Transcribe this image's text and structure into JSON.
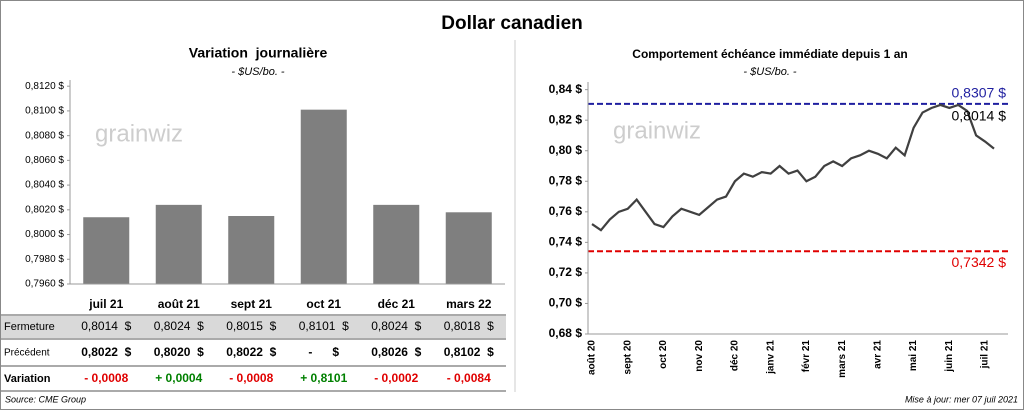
{
  "title": "Dollar canadien",
  "chart_data": [
    {
      "type": "bar",
      "title": "Variation  journalière",
      "subtitle": "- $US/bo. -",
      "watermark": "grainwiz",
      "categories": [
        "juil 21",
        "août 21",
        "sept 21",
        "oct 21",
        "déc 21",
        "mars 22"
      ],
      "values": [
        0.8014,
        0.8024,
        0.8015,
        0.8101,
        0.8024,
        0.8018
      ],
      "color": "#7f7f7f",
      "ylim": [
        0.796,
        0.8125
      ],
      "yticks": [
        {
          "value": 0.796,
          "label": "0,7960 $"
        },
        {
          "value": 0.798,
          "label": "0,7980 $"
        },
        {
          "value": 0.8,
          "label": "0,8000 $"
        },
        {
          "value": 0.802,
          "label": "0,8020 $"
        },
        {
          "value": 0.804,
          "label": "0,8040 $"
        },
        {
          "value": 0.806,
          "label": "0,8060 $"
        },
        {
          "value": 0.808,
          "label": "0,8080 $"
        },
        {
          "value": 0.81,
          "label": "0,8100 $"
        },
        {
          "value": 0.812,
          "label": "0,8120 $"
        }
      ]
    },
    {
      "type": "line",
      "title": "Comportement échéance immédiate depuis 1 an",
      "subtitle": "- $US/bo. -",
      "watermark": "grainwiz",
      "x": [
        "août 20",
        null,
        null,
        null,
        "sept 20",
        null,
        null,
        null,
        "oct 20",
        null,
        null,
        null,
        "nov 20",
        null,
        null,
        null,
        "déc 20",
        null,
        null,
        null,
        "janv 21",
        null,
        null,
        null,
        "févr 21",
        null,
        null,
        null,
        "mars 21",
        null,
        null,
        null,
        "avr 21",
        null,
        null,
        null,
        "mai 21",
        null,
        null,
        null,
        "juin 21",
        null,
        null,
        null,
        "juil 21",
        null
      ],
      "series": [
        {
          "name": "Dollar canadien",
          "color": "#404040",
          "values": [
            0.752,
            0.748,
            0.755,
            0.76,
            0.762,
            0.768,
            0.76,
            0.752,
            0.75,
            0.757,
            0.762,
            0.76,
            0.758,
            0.763,
            0.768,
            0.77,
            0.78,
            0.785,
            0.783,
            0.786,
            0.785,
            0.79,
            0.785,
            0.787,
            0.78,
            0.783,
            0.79,
            0.793,
            0.79,
            0.795,
            0.797,
            0.8,
            0.798,
            0.795,
            0.802,
            0.797,
            0.815,
            0.825,
            0.828,
            0.83,
            0.828,
            0.83,
            0.826,
            0.81,
            0.806,
            0.8014
          ]
        }
      ],
      "reference_lines": [
        {
          "value": 0.8307,
          "label": "0,8307 $",
          "color": "#1f1fa0"
        },
        {
          "value": 0.7342,
          "label": "0,7342 $",
          "color": "#e00000"
        }
      ],
      "last_label": "0,8014 $",
      "ylim": [
        0.68,
        0.845
      ],
      "yticks": [
        {
          "value": 0.68,
          "label": "0,68 $"
        },
        {
          "value": 0.7,
          "label": "0,70 $"
        },
        {
          "value": 0.72,
          "label": "0,72 $"
        },
        {
          "value": 0.74,
          "label": "0,74 $"
        },
        {
          "value": 0.76,
          "label": "0,76 $"
        },
        {
          "value": 0.78,
          "label": "0,78 $"
        },
        {
          "value": 0.8,
          "label": "0,80 $"
        },
        {
          "value": 0.82,
          "label": "0,82 $"
        },
        {
          "value": 0.84,
          "label": "0,84 $"
        }
      ]
    }
  ],
  "table": {
    "rows": [
      {
        "label": "Fermeture",
        "cells": [
          "0,8014  $",
          "0,8024  $",
          "0,8015  $",
          "0,8101  $",
          "0,8024  $",
          "0,8018  $"
        ]
      },
      {
        "label": "Précédent",
        "cells": [
          "0,8022  $",
          "0,8020  $",
          "0,8022  $",
          "-      $",
          "0,8026  $",
          "0,8102  $"
        ]
      },
      {
        "label": "Variation",
        "cells": [
          "- 0,0008",
          "+ 0,0004",
          "- 0,0008",
          "+ 0,8101",
          "- 0,0002",
          "- 0,0084"
        ]
      }
    ]
  },
  "footer": {
    "source": "Source: CME Group",
    "updated": "Mise à jour: mer 07 juil 2021"
  }
}
